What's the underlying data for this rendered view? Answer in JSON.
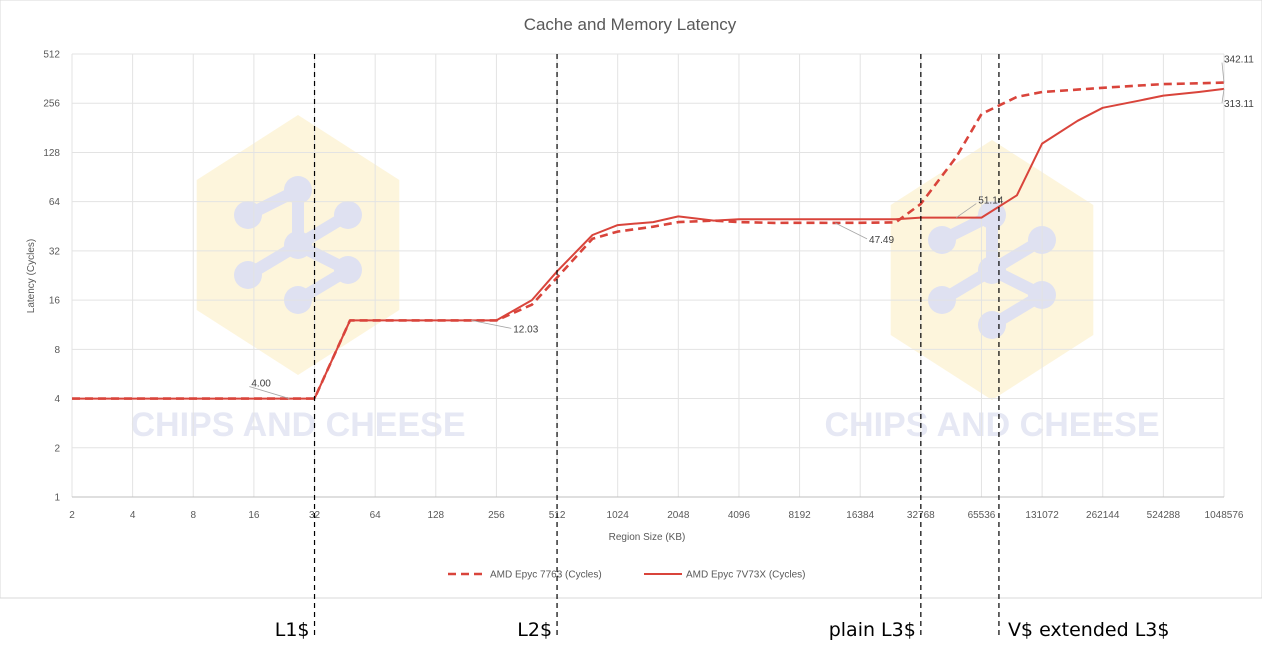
{
  "chart_data": {
    "type": "line",
    "title": "Cache and Memory Latency",
    "xlabel": "Region Size (KB)",
    "ylabel": "Latency (Cycles)",
    "x_scale": "log2",
    "y_scale": "log2",
    "xlim": [
      2,
      1048576
    ],
    "ylim": [
      1,
      512
    ],
    "grid": true,
    "legend_position": "bottom",
    "x_ticks": [
      "2",
      "4",
      "8",
      "16",
      "32",
      "64",
      "128",
      "256",
      "512",
      "1024",
      "2048",
      "4096",
      "8192",
      "16384",
      "32768",
      "65536",
      "131072",
      "262144",
      "524288",
      "1048576"
    ],
    "y_ticks": [
      "1",
      "2",
      "4",
      "8",
      "16",
      "32",
      "64",
      "128",
      "256",
      "512"
    ],
    "x": [
      2,
      4,
      8,
      16,
      24,
      32,
      48,
      64,
      96,
      128,
      192,
      256,
      384,
      512,
      768,
      1024,
      1536,
      2048,
      3072,
      4096,
      6144,
      8192,
      12288,
      16384,
      24576,
      32768,
      49152,
      65536,
      98304,
      131072,
      196608,
      262144,
      393216,
      524288,
      786432,
      1048576
    ],
    "series": [
      {
        "name": "AMD Epyc 7763 (Cycles)",
        "color": "#d9443b",
        "style": "dashed",
        "values": [
          4,
          4,
          4,
          4,
          4,
          4,
          12.03,
          12.03,
          12.03,
          12.03,
          12.03,
          12.03,
          15,
          22,
          38,
          42,
          45,
          48,
          49,
          48,
          47.49,
          47.5,
          47.49,
          47.5,
          47.8,
          62,
          120,
          220,
          280,
          300,
          310,
          318,
          328,
          335,
          339,
          342.11
        ]
      },
      {
        "name": "AMD Epyc 7V73X (Cycles)",
        "color": "#d9443b",
        "style": "solid",
        "values": [
          4,
          4,
          4,
          4,
          4,
          4,
          12.03,
          12.03,
          12.03,
          12.03,
          12.03,
          12.03,
          16,
          24,
          40,
          46,
          48,
          52,
          49,
          50,
          50,
          50,
          50,
          50,
          50,
          51.14,
          51.14,
          51.14,
          70,
          145,
          200,
          240,
          265,
          285,
          300,
          313.11
        ]
      }
    ],
    "annotations": [
      {
        "label": "4.00",
        "x": 24,
        "y": 4
      },
      {
        "label": "12.03",
        "x": 192,
        "y": 12.03
      },
      {
        "label": "47.49",
        "x": 12288,
        "y": 47.49
      },
      {
        "label": "51.14",
        "x": 49152,
        "y": 51.14
      },
      {
        "label": "342.11",
        "x": 1048576,
        "y": 342.11
      },
      {
        "label": "313.11",
        "x": 1048576,
        "y": 313.11
      }
    ],
    "boundaries": [
      {
        "label": "L1$",
        "x": 32
      },
      {
        "label": "L2$",
        "x": 512
      },
      {
        "label": "plain L3$",
        "x": 32768
      },
      {
        "label": "V$ extended L3$",
        "x": 98304
      }
    ],
    "watermark": "CHIPS AND CHEESE"
  }
}
